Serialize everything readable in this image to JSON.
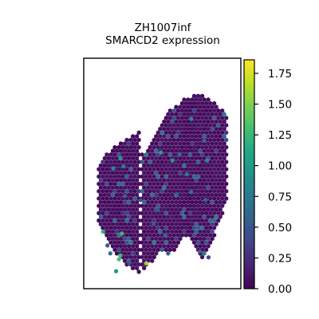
{
  "chart_data": {
    "type": "scatter",
    "title_lines": [
      "ZH1007inf",
      "SMARCD2 expression"
    ],
    "xlabel": "",
    "ylabel": "",
    "marker": "hexagon",
    "colormap": "viridis",
    "color_range": [
      0.0,
      1.86
    ],
    "colorbar_ticks": [
      "0.00",
      "0.25",
      "0.50",
      "0.75",
      "1.00",
      "1.25",
      "1.50",
      "1.75"
    ],
    "colorbar_tick_values": [
      0.0,
      0.25,
      0.5,
      0.75,
      1.0,
      1.25,
      1.5,
      1.75
    ],
    "axes_visible": false,
    "grid": false,
    "spot_grid": {
      "x_range": [
        0,
        100
      ],
      "y_range": [
        0,
        100
      ],
      "columns": 36,
      "rows": 54,
      "left_strip": {
        "x_bounds": [
          6,
          34
        ],
        "profile_top": [
          [
            6,
            58
          ],
          [
            9,
            62
          ],
          [
            15,
            66
          ],
          [
            20,
            69
          ],
          [
            26,
            71
          ],
          [
            31,
            73
          ],
          [
            34,
            76
          ]
        ],
        "profile_bottom": [
          [
            6,
            28
          ],
          [
            10,
            24
          ],
          [
            14,
            18
          ],
          [
            18,
            13
          ],
          [
            23,
            9
          ],
          [
            28,
            5
          ],
          [
            34,
            3
          ]
        ]
      },
      "right_strip": {
        "x_bounds": [
          36,
          95
        ],
        "profile_top": [
          [
            36,
            63
          ],
          [
            40,
            67
          ],
          [
            45,
            72
          ],
          [
            50,
            78
          ],
          [
            55,
            85
          ],
          [
            62,
            89
          ],
          [
            67,
            92
          ],
          [
            72,
            93
          ],
          [
            78,
            93
          ],
          [
            84,
            91
          ],
          [
            88,
            88
          ],
          [
            91,
            86
          ],
          [
            95,
            83
          ]
        ],
        "profile_bottom": [
          [
            36,
            5
          ],
          [
            40,
            6
          ],
          [
            45,
            11
          ],
          [
            50,
            14
          ],
          [
            55,
            12
          ],
          [
            60,
            16
          ],
          [
            65,
            22
          ],
          [
            70,
            20
          ],
          [
            74,
            14
          ],
          [
            78,
            10
          ],
          [
            82,
            14
          ],
          [
            86,
            22
          ],
          [
            89,
            28
          ],
          [
            92,
            34
          ],
          [
            95,
            40
          ]
        ]
      },
      "base_value": 0.03,
      "moderate_fraction": 0.1,
      "moderate_range": [
        0.25,
        0.75
      ]
    },
    "highlight_points": [
      {
        "x": 21,
        "y": 61,
        "value": 1.0
      },
      {
        "x": 23,
        "y": 57,
        "value": 0.85
      },
      {
        "x": 16,
        "y": 56,
        "value": 0.9
      },
      {
        "x": 25,
        "y": 52,
        "value": 0.6
      },
      {
        "x": 49,
        "y": 64,
        "value": 1.05
      },
      {
        "x": 57,
        "y": 60,
        "value": 1.0
      },
      {
        "x": 67,
        "y": 53,
        "value": 0.8
      },
      {
        "x": 62,
        "y": 63,
        "value": 0.7
      },
      {
        "x": 81,
        "y": 60,
        "value": 0.95
      },
      {
        "x": 79,
        "y": 70,
        "value": 0.65
      },
      {
        "x": 70,
        "y": 81,
        "value": 0.9
      },
      {
        "x": 57,
        "y": 80,
        "value": 0.6
      },
      {
        "x": 85,
        "y": 76,
        "value": 0.55
      },
      {
        "x": 75,
        "y": 52,
        "value": 0.7
      },
      {
        "x": 70,
        "y": 44,
        "value": 0.75
      },
      {
        "x": 60,
        "y": 43,
        "value": 0.55
      },
      {
        "x": 80,
        "y": 40,
        "value": 0.6
      },
      {
        "x": 47,
        "y": 35,
        "value": 0.55
      },
      {
        "x": 35,
        "y": 40,
        "value": 0.5
      },
      {
        "x": 24,
        "y": 42,
        "value": 0.6
      },
      {
        "x": 52,
        "y": 22,
        "value": 0.65
      },
      {
        "x": 44,
        "y": 28,
        "value": 0.5
      },
      {
        "x": 9,
        "y": 24,
        "value": 1.2
      },
      {
        "x": 22,
        "y": 23,
        "value": 1.25
      },
      {
        "x": 12,
        "y": 17,
        "value": 0.55
      },
      {
        "x": 14,
        "y": 13,
        "value": 0.7
      },
      {
        "x": 21,
        "y": 12,
        "value": 1.25
      },
      {
        "x": 20,
        "y": 10,
        "value": 1.3
      },
      {
        "x": 27,
        "y": 8,
        "value": 0.5
      },
      {
        "x": 39,
        "y": 8,
        "value": 1.6
      },
      {
        "x": 18,
        "y": 4,
        "value": 1.0
      },
      {
        "x": 76,
        "y": 14,
        "value": 0.6
      },
      {
        "x": 82,
        "y": 11,
        "value": 0.45
      }
    ]
  }
}
